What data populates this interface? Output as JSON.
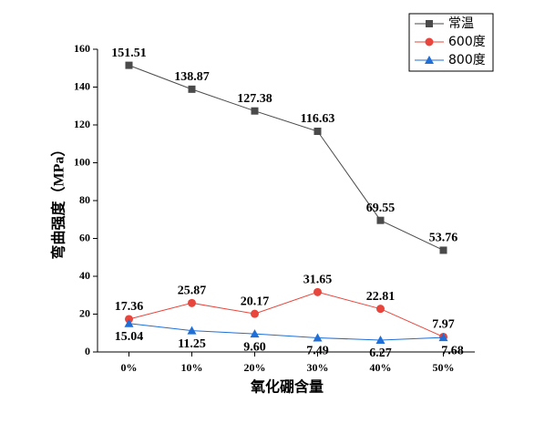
{
  "chart_data": {
    "type": "line",
    "x_label": "氧化硼含量",
    "y_label": "弯曲强度（MPa）",
    "categories": [
      "0%",
      "10%",
      "20%",
      "30%",
      "40%",
      "50%"
    ],
    "series": [
      {
        "name": "常温",
        "color": "#4a4a4a",
        "marker": "square",
        "values": [
          151.51,
          138.87,
          127.38,
          116.63,
          69.55,
          53.76
        ],
        "value_labels": [
          "151.51",
          "138.87",
          "127.38",
          "116.63",
          "69.55",
          "53.76"
        ]
      },
      {
        "name": "600度",
        "color": "#e8453c",
        "marker": "circle",
        "values": [
          17.36,
          25.87,
          20.17,
          31.65,
          22.81,
          7.97
        ],
        "value_labels": [
          "17.36",
          "25.87",
          "20.17",
          "31.65",
          "22.81",
          "7.97"
        ]
      },
      {
        "name": "800度",
        "color": "#1f6fd6",
        "marker": "triangle",
        "values": [
          15.04,
          11.25,
          9.6,
          7.49,
          6.27,
          7.68
        ],
        "value_labels": [
          "15.04",
          "11.25",
          "9.60",
          "7.49",
          "6.27",
          "7.68"
        ]
      }
    ],
    "ylim": [
      0,
      160
    ],
    "yticks": [
      0,
      20,
      40,
      60,
      80,
      100,
      120,
      140,
      160
    ],
    "legend": "top-right",
    "grid": false
  }
}
